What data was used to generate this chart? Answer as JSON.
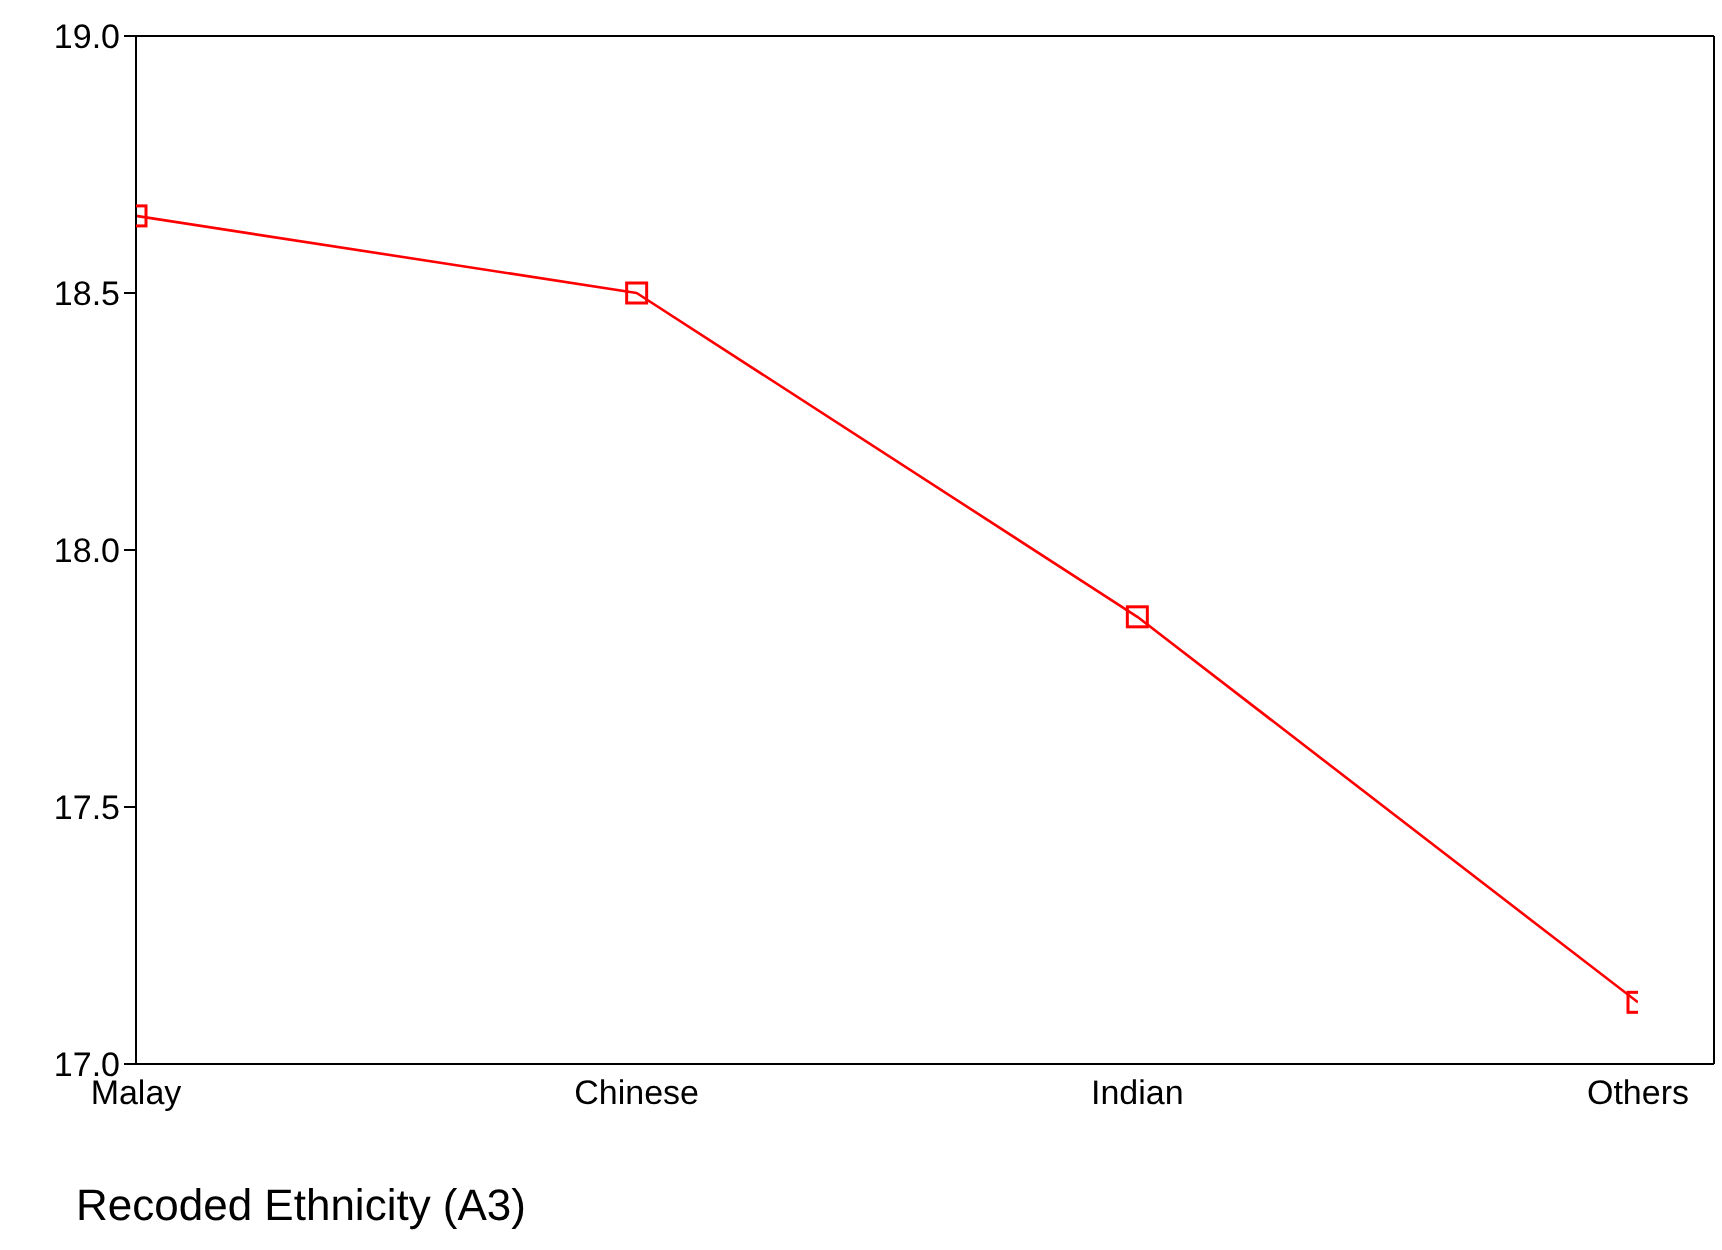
{
  "chart_data": {
    "type": "line",
    "xlabel": "Recoded Ethnicity (A3)",
    "categories": [
      "Malay",
      "Chinese",
      "Indian",
      "Others"
    ],
    "series": [
      {
        "color": "#ff0000",
        "values": [
          18.65,
          18.5,
          17.87,
          17.12
        ]
      }
    ],
    "ylim": [
      17.0,
      19.0
    ],
    "yticks": [
      {
        "value": 17,
        "label": "17.0"
      },
      {
        "value": 17.5,
        "label": "17.5"
      },
      {
        "value": 18,
        "label": "18.0"
      },
      {
        "value": 18.5,
        "label": "18.5"
      },
      {
        "value": 19,
        "label": "19.0"
      }
    ],
    "grid": false,
    "legend": false,
    "marker": "square",
    "line_style": "solid"
  }
}
